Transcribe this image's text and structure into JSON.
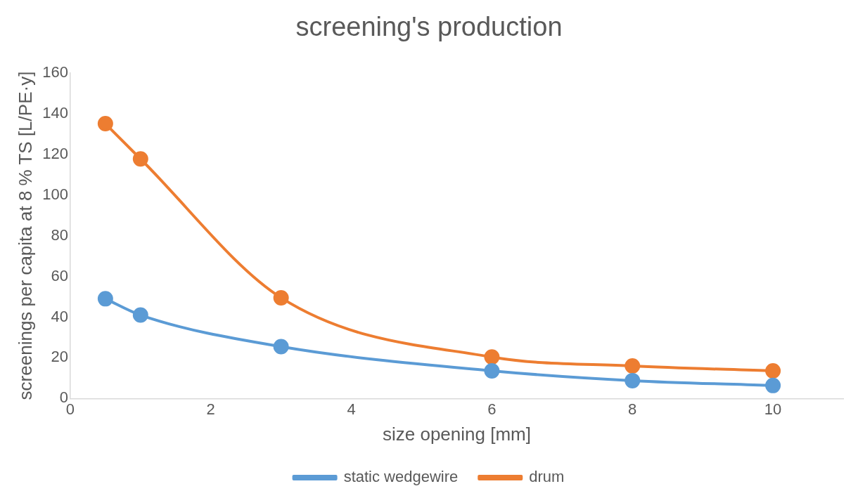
{
  "chart_data": {
    "type": "line",
    "title": "screening's production",
    "xlabel": "size opening [mm]",
    "ylabel": "screenings per capita at 8 % TS [L/PE·y]",
    "x": [
      0.5,
      1,
      3,
      6,
      8,
      10
    ],
    "series": [
      {
        "name": "static wedgewire",
        "color": "#5b9bd5",
        "values": [
          49,
          41,
          25.5,
          13.6,
          8.8,
          6.4
        ]
      },
      {
        "name": "drum",
        "color": "#ed7d31",
        "values": [
          135,
          117.7,
          49.5,
          20.4,
          16,
          13.6
        ]
      }
    ],
    "xlim": [
      0,
      11
    ],
    "xticks": [
      0,
      2,
      4,
      6,
      8,
      10
    ],
    "ylim": [
      0,
      160
    ],
    "yticks": [
      0,
      20,
      40,
      60,
      80,
      100,
      120,
      140,
      160
    ],
    "grid": false,
    "legend": "bottom",
    "marker": "circle",
    "line_style": "solid"
  }
}
